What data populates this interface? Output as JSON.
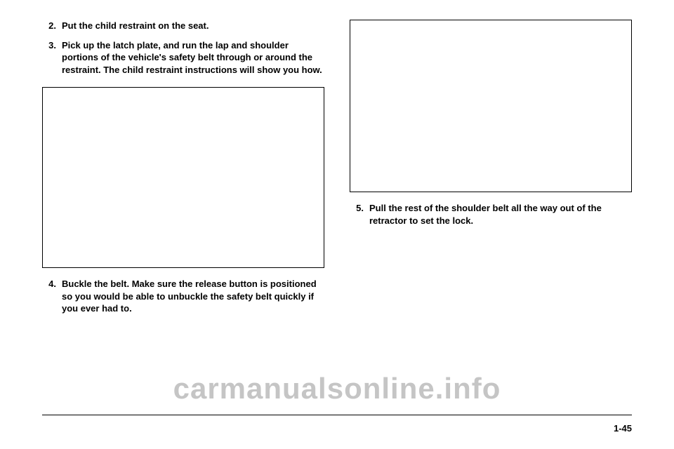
{
  "left": {
    "step2": {
      "num": "2.",
      "text": "Put the child restraint on the seat."
    },
    "step3": {
      "num": "3.",
      "text": "Pick up the latch plate, and run the lap and shoulder portions of the vehicle's safety belt through or around the restraint. The child restraint instructions will show you how."
    },
    "step4": {
      "num": "4.",
      "text": "Buckle the belt. Make sure the release button is positioned so you would be able to unbuckle the safety belt quickly if you ever had to."
    }
  },
  "right": {
    "step5": {
      "num": "5.",
      "text": "Pull the rest of the shoulder belt all the way out of the retractor to set the lock."
    }
  },
  "pageNumber": "1-45",
  "watermark": "carmanualsonline.info",
  "colors": {
    "text": "#000000",
    "border": "#000000",
    "watermark": "rgba(150,150,150,0.55)",
    "background": "#ffffff"
  }
}
